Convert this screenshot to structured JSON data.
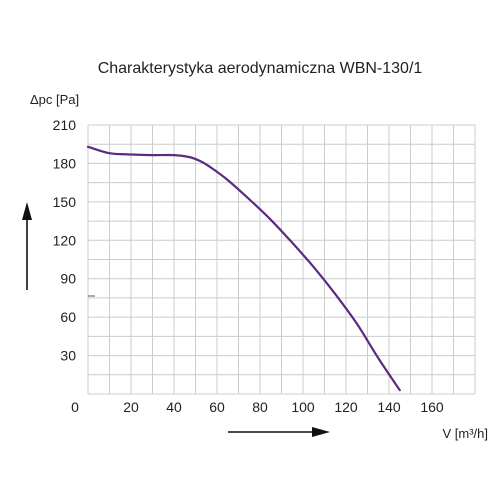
{
  "chart_data": {
    "type": "line",
    "title": "Charakterystyka aerodynamiczna WBN-130/1",
    "xlabel": "V [m³/h]",
    "ylabel": "Δpc [Pa]",
    "xlim": [
      0,
      180
    ],
    "ylim": [
      0,
      210
    ],
    "x_ticks": [
      "0",
      "20",
      "40",
      "60",
      "80",
      "100",
      "120",
      "140",
      "160"
    ],
    "y_ticks": [
      "210",
      "180",
      "150",
      "120",
      "90",
      "60",
      "30"
    ],
    "grid": true,
    "legend": "none",
    "series": [
      {
        "color": "#5b2a82",
        "x": [
          0,
          10,
          20,
          30,
          40,
          47,
          52,
          57,
          65,
          75,
          85,
          95,
          105,
          115,
          125,
          135,
          145
        ],
        "y": [
          193,
          188,
          187,
          186.5,
          186.5,
          185,
          182,
          177,
          167,
          152,
          136,
          118,
          99,
          78,
          55,
          28,
          3
        ]
      }
    ]
  }
}
